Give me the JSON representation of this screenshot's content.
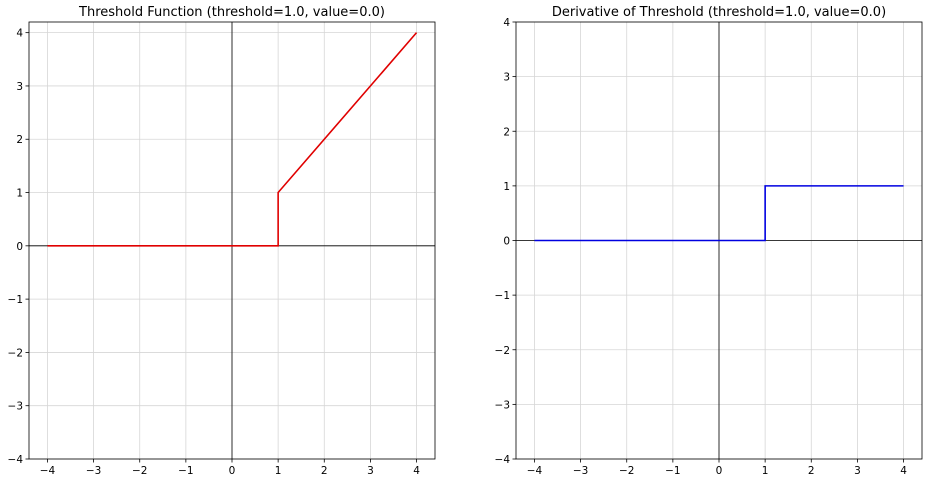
{
  "chart_data": [
    {
      "type": "line",
      "title": "Threshold Function (threshold=1.0, value=0.0)",
      "xlabel": "",
      "ylabel": "",
      "xlim": [
        -4.4,
        4.4
      ],
      "ylim": [
        -4,
        4.2
      ],
      "xticks": [
        -4,
        -3,
        -2,
        -1,
        0,
        1,
        2,
        3,
        4
      ],
      "yticks": [
        -4,
        -3,
        -2,
        -1,
        0,
        1,
        2,
        3,
        4
      ],
      "xtick_labels": [
        "−4",
        "−3",
        "−2",
        "−1",
        "0",
        "1",
        "2",
        "3",
        "4"
      ],
      "ytick_labels": [
        "−4",
        "−3",
        "−2",
        "−1",
        "0",
        "1",
        "2",
        "3",
        "4"
      ],
      "grid": true,
      "series": [
        {
          "color": "#e00000",
          "x": [
            -4,
            1,
            1,
            4
          ],
          "y": [
            0,
            0,
            1,
            4
          ]
        }
      ]
    },
    {
      "type": "line",
      "title": "Derivative of Threshold (threshold=1.0, value=0.0)",
      "xlabel": "",
      "ylabel": "",
      "xlim": [
        -4.4,
        4.4
      ],
      "ylim": [
        -4,
        4
      ],
      "xticks": [
        -4,
        -3,
        -2,
        -1,
        0,
        1,
        2,
        3,
        4
      ],
      "yticks": [
        -4,
        -3,
        -2,
        -1,
        0,
        1,
        2,
        3,
        4
      ],
      "xtick_labels": [
        "−4",
        "−3",
        "−2",
        "−1",
        "0",
        "1",
        "2",
        "3",
        "4"
      ],
      "ytick_labels": [
        "−4",
        "−3",
        "−2",
        "−1",
        "0",
        "1",
        "2",
        "3",
        "4"
      ],
      "grid": true,
      "series": [
        {
          "color": "#0000e0",
          "x": [
            -4,
            1,
            1,
            4
          ],
          "y": [
            0,
            0,
            1,
            1
          ]
        }
      ]
    }
  ]
}
